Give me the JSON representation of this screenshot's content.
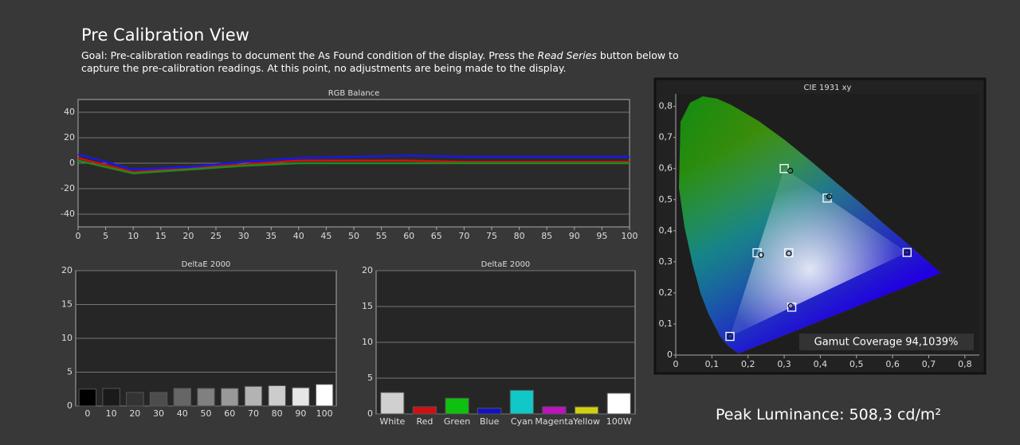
{
  "header": {
    "title": "Pre Calibration View",
    "goal_before": "Goal: Pre-calibration readings to document the As Found condition of the display. Press the ",
    "goal_emphasis": "Read Series",
    "goal_after": " button below to capture the pre-calibration readings. At this point, no adjustments are being made to the display."
  },
  "peak_luminance": "Peak Luminance: 508,3 cd/m²",
  "chart_data": [
    {
      "type": "line",
      "title": "RGB Balance",
      "x": [
        0,
        10,
        20,
        30,
        40,
        50,
        60,
        70,
        80,
        90,
        100
      ],
      "series": [
        {
          "color": "#d01010",
          "values": [
            4,
            -7,
            -4,
            -1,
            2,
            2,
            2,
            1,
            1,
            1,
            1
          ]
        },
        {
          "color": "#1e8a1e",
          "values": [
            2,
            -8,
            -5,
            -2,
            0,
            0,
            0,
            0,
            0,
            0,
            0
          ]
        },
        {
          "color": "#1818e8",
          "values": [
            7,
            -5,
            -3,
            1,
            4,
            5,
            6,
            5,
            5,
            5,
            5
          ]
        }
      ],
      "xlim": [
        0,
        100
      ],
      "xticks": [
        0,
        5,
        10,
        15,
        20,
        25,
        30,
        35,
        40,
        45,
        50,
        55,
        60,
        65,
        70,
        75,
        80,
        85,
        90,
        95,
        100
      ],
      "ylim": [
        -50,
        50
      ],
      "yticks": [
        -40,
        -20,
        0,
        20,
        40
      ],
      "grid": true
    },
    {
      "type": "bar",
      "title": "DeltaE 2000",
      "categories": [
        "0",
        "10",
        "20",
        "30",
        "40",
        "50",
        "60",
        "70",
        "80",
        "90",
        "100"
      ],
      "values": [
        2.5,
        2.6,
        2.0,
        2.0,
        2.6,
        2.6,
        2.6,
        2.9,
        3.0,
        2.7,
        3.2
      ],
      "colors": [
        "#000000",
        "#1a1a1a",
        "#333333",
        "#4d4d4d",
        "#666666",
        "#808080",
        "#999999",
        "#b3b3b3",
        "#cccccc",
        "#e6e6e6",
        "#ffffff"
      ],
      "ylim": [
        0,
        20
      ],
      "yticks": [
        0,
        5,
        10,
        15,
        20
      ],
      "grid": true
    },
    {
      "type": "bar",
      "title": "DeltaE 2000",
      "categories": [
        "White",
        "Red",
        "Green",
        "Blue",
        "Cyan",
        "Magenta",
        "Yellow",
        "100W"
      ],
      "values": [
        3.0,
        1.0,
        2.2,
        0.8,
        3.3,
        1.0,
        1.0,
        2.9
      ],
      "colors": [
        "#d0d0d0",
        "#d01010",
        "#10c010",
        "#1010c8",
        "#10c8c8",
        "#c010c0",
        "#d0d010",
        "#ffffff"
      ],
      "ylim": [
        0,
        20
      ],
      "yticks": [
        0,
        5,
        10,
        15,
        20
      ],
      "grid": true
    },
    {
      "type": "scatter",
      "title": "CIE 1931 xy",
      "annotation": "Gamut Coverage 94,1039%",
      "series": [
        {
          "marker": "square",
          "color": "#ffffff",
          "x": [
            0.64,
            0.3,
            0.15,
            0.3127,
            0.225,
            0.321,
            0.419
          ],
          "values": [
            0.33,
            0.6,
            0.06,
            0.329,
            0.329,
            0.154,
            0.505
          ]
        },
        {
          "marker": "circle",
          "color": "#111111",
          "x": [
            0.64,
            0.317,
            0.15,
            0.313,
            0.236,
            0.318,
            0.425
          ],
          "values": [
            0.33,
            0.593,
            0.06,
            0.327,
            0.322,
            0.158,
            0.51
          ]
        }
      ],
      "xlim": [
        0,
        0.84
      ],
      "xticks": [
        0,
        {
          "value": 0.1,
          "label": "0,1"
        },
        {
          "value": 0.2,
          "label": "0,2"
        },
        {
          "value": 0.3,
          "label": "0,3"
        },
        {
          "value": 0.4,
          "label": "0,4"
        },
        {
          "value": 0.5,
          "label": "0,5"
        },
        {
          "value": 0.6,
          "label": "0,6"
        },
        {
          "value": 0.7,
          "label": "0,7"
        },
        {
          "value": 0.8,
          "label": "0,8"
        }
      ],
      "ylim": [
        0,
        0.84
      ],
      "yticks": [
        0,
        {
          "value": 0.1,
          "label": "0,1"
        },
        {
          "value": 0.2,
          "label": "0,2"
        },
        {
          "value": 0.3,
          "label": "0,3"
        },
        {
          "value": 0.4,
          "label": "0,4"
        },
        {
          "value": 0.5,
          "label": "0,5"
        },
        {
          "value": 0.6,
          "label": "0,6"
        },
        {
          "value": 0.7,
          "label": "0,7"
        },
        {
          "value": 0.8,
          "label": "0,8"
        }
      ],
      "grid": false
    }
  ]
}
